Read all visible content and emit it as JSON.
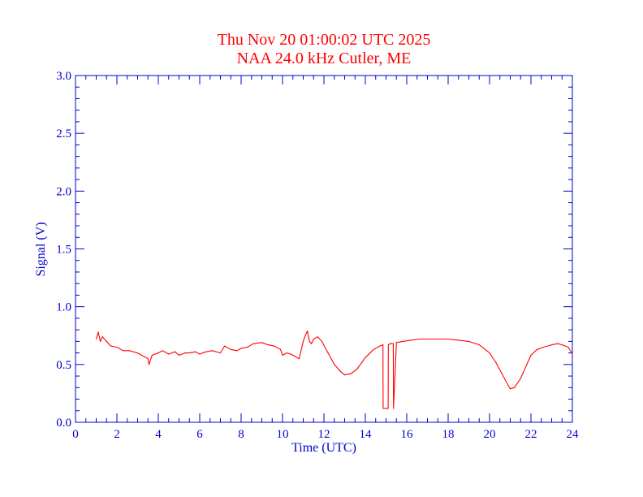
{
  "colors": {
    "title": "#ff0000",
    "axis": "#0000cc",
    "series": "#ff0000",
    "background": "#ffffff"
  },
  "chart_data": {
    "type": "line",
    "title": "Thu Nov 20 01:00:02 UTC 2025",
    "subtitle": "NAA 24.0 kHz Cutler, ME",
    "xlabel": "Time (UTC)",
    "ylabel": "Signal (V)",
    "xlim": [
      0,
      24
    ],
    "ylim": [
      0,
      3
    ],
    "xticks": [
      0,
      2,
      4,
      6,
      8,
      10,
      12,
      14,
      16,
      18,
      20,
      22,
      24
    ],
    "xtick_labels": [
      "0",
      "2",
      "4",
      "6",
      "8",
      "10",
      "12",
      "14",
      "16",
      "18",
      "20",
      "22",
      "24"
    ],
    "yticks": [
      0,
      0.5,
      1,
      1.5,
      2,
      2.5,
      3
    ],
    "ytick_labels": [
      "0.0",
      "0.5",
      "1.0",
      "1.5",
      "2.0",
      "2.5",
      "3.0"
    ],
    "grid": false,
    "series": [
      {
        "x": [
          1.0,
          1.1,
          1.2,
          1.3,
          1.5,
          1.7,
          2.0,
          2.3,
          2.6,
          3.0,
          3.3,
          3.5,
          3.55,
          3.7,
          4.0,
          4.2,
          4.5,
          4.8,
          5.0,
          5.3,
          5.5,
          5.8,
          6.0,
          6.3,
          6.6,
          7.0,
          7.2,
          7.5,
          7.8,
          8.0,
          8.3,
          8.6,
          9.0,
          9.3,
          9.6,
          9.9,
          10.0,
          10.2,
          10.4,
          10.6,
          10.8,
          11.0,
          11.1,
          11.2,
          11.3,
          11.4,
          11.5,
          11.7,
          11.9,
          12.2,
          12.5,
          12.8,
          13.0,
          13.3,
          13.6,
          14.0,
          14.4,
          14.7,
          14.85,
          14.86,
          15.1,
          15.11,
          15.2,
          15.21,
          15.35,
          15.36,
          15.5,
          15.8,
          16.2,
          16.6,
          17.0,
          17.5,
          18.0,
          18.5,
          19.0,
          19.5,
          20.0,
          20.3,
          20.6,
          20.9,
          21.0,
          21.2,
          21.5,
          21.8,
          22.0,
          22.3,
          22.6,
          23.0,
          23.3,
          23.5,
          23.8,
          24.0
        ],
        "y": [
          0.72,
          0.78,
          0.7,
          0.74,
          0.7,
          0.66,
          0.65,
          0.62,
          0.62,
          0.6,
          0.57,
          0.55,
          0.5,
          0.58,
          0.6,
          0.62,
          0.59,
          0.61,
          0.58,
          0.6,
          0.6,
          0.61,
          0.59,
          0.61,
          0.62,
          0.6,
          0.66,
          0.63,
          0.62,
          0.64,
          0.65,
          0.68,
          0.69,
          0.67,
          0.66,
          0.63,
          0.58,
          0.6,
          0.59,
          0.57,
          0.55,
          0.7,
          0.75,
          0.79,
          0.7,
          0.68,
          0.72,
          0.74,
          0.7,
          0.6,
          0.5,
          0.44,
          0.41,
          0.42,
          0.46,
          0.56,
          0.63,
          0.66,
          0.67,
          0.12,
          0.12,
          0.67,
          0.68,
          0.68,
          0.68,
          0.12,
          0.69,
          0.7,
          0.71,
          0.72,
          0.72,
          0.72,
          0.72,
          0.71,
          0.7,
          0.67,
          0.6,
          0.52,
          0.42,
          0.32,
          0.29,
          0.3,
          0.38,
          0.5,
          0.58,
          0.63,
          0.65,
          0.67,
          0.68,
          0.67,
          0.65,
          0.59
        ]
      }
    ]
  }
}
